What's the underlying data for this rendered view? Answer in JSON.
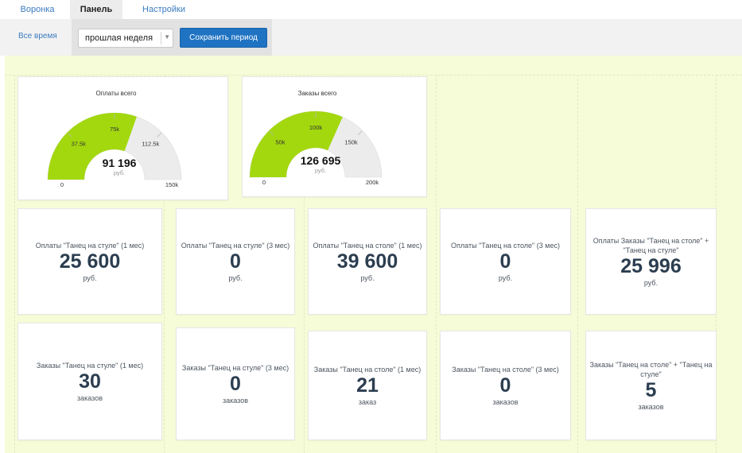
{
  "tabs": [
    {
      "label": "Воронка"
    },
    {
      "label": "Панель"
    },
    {
      "label": "Настройки"
    }
  ],
  "filter": {
    "all_time": "Все время",
    "period_selected": "прошлая неделя",
    "save_label": "Сохранить период"
  },
  "colors": {
    "gauge_fill": "#a3d80f",
    "gauge_track": "#ececec",
    "accent": "#1f73c2",
    "dashboard_bg": "#f6fbd8"
  },
  "gauges": [
    {
      "title": "Оплаты всего",
      "value_text": "91 196",
      "unit": "руб.",
      "value": 91196,
      "max": 150000,
      "ticks": [
        {
          "label": "0",
          "v": 0
        },
        {
          "label": "37.5k",
          "v": 37500
        },
        {
          "label": "75k",
          "v": 75000
        },
        {
          "label": "112.5k",
          "v": 112500
        },
        {
          "label": "150k",
          "v": 150000
        }
      ]
    },
    {
      "title": "Заказы всего",
      "value_text": "126 695",
      "unit": "руб.",
      "value": 126695,
      "max": 200000,
      "ticks": [
        {
          "label": "0",
          "v": 0
        },
        {
          "label": "50k",
          "v": 50000
        },
        {
          "label": "100k",
          "v": 100000
        },
        {
          "label": "150k",
          "v": 150000
        },
        {
          "label": "200k",
          "v": 200000
        }
      ]
    }
  ],
  "payments": [
    {
      "title": "Оплаты \"Танец на стуле\" (1 мес)",
      "value": "25 600",
      "unit": "руб."
    },
    {
      "title": "Оплаты \"Танец на стуле\" (3 мес)",
      "value": "0",
      "unit": "руб."
    },
    {
      "title": "Оплаты \"Танец на столе\" (1 мес)",
      "value": "39 600",
      "unit": "руб."
    },
    {
      "title": "Оплаты \"Танец на столе\" (3 мес)",
      "value": "0",
      "unit": "руб."
    },
    {
      "title": "Оплаты Заказы \"Танец на столе\" + \"Танец на стуле\"",
      "value": "25 996",
      "unit": "руб."
    }
  ],
  "orders": [
    {
      "title": "Заказы \"Танец на стуле\" (1 мес)",
      "value": "30",
      "unit": "заказов"
    },
    {
      "title": "Заказы \"Танец на стуле\" (3 мес)",
      "value": "0",
      "unit": "заказов"
    },
    {
      "title": "Заказы \"Танец на столе\" (1 мес)",
      "value": "21",
      "unit": "заказ"
    },
    {
      "title": "Заказы \"Танец на столе\" (3 мес)",
      "value": "0",
      "unit": "заказов"
    },
    {
      "title": "Заказы \"Танец на столе\" + \"Танец на стуле\"",
      "value": "5",
      "unit": "заказов"
    }
  ]
}
